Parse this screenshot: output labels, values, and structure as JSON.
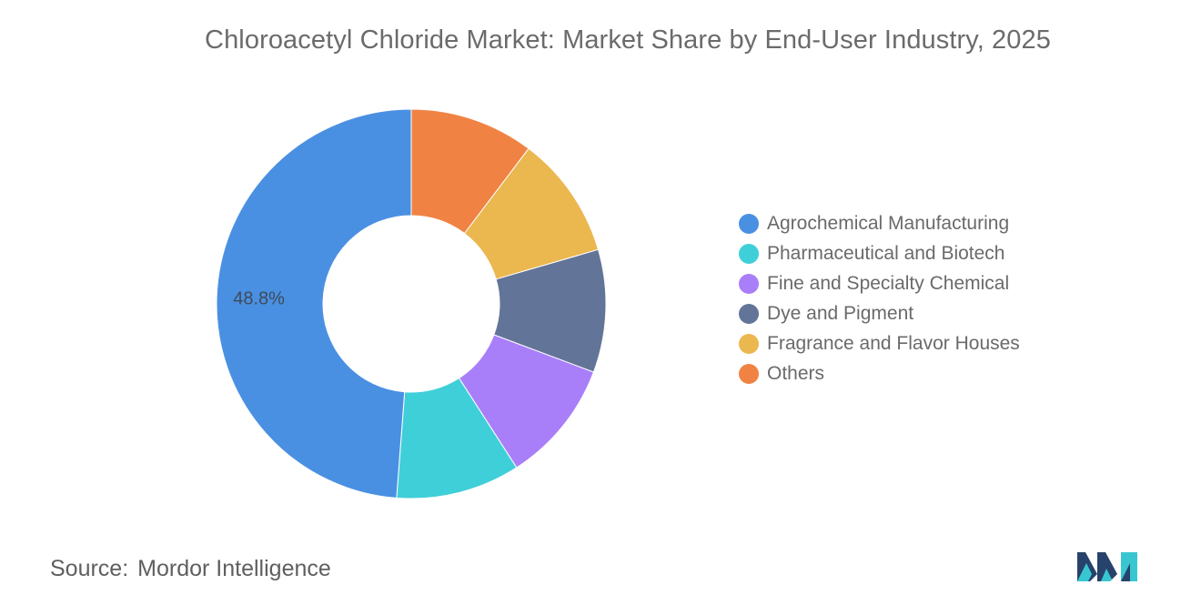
{
  "chart_data": {
    "type": "pie",
    "title": "Chloroacetyl Chloride Market: Market Share by End-User Industry, 2025",
    "categories": [
      "Agrochemical Manufacturing",
      "Pharmaceutical and Biotech",
      "Fine and Specialty Chemical",
      "Dye and Pigment",
      "Fragrance and Flavor Houses",
      "Others"
    ],
    "values": [
      48.8,
      10.3,
      10.2,
      10.2,
      10.2,
      10.3
    ],
    "colors": [
      "#4a90e2",
      "#3fcfd9",
      "#a97ff9",
      "#627598",
      "#ebb74f",
      "#f08344"
    ],
    "data_labels": [
      "48.8%",
      "",
      "",
      "",
      "",
      ""
    ],
    "legend_position": "right",
    "donut": true
  },
  "source": {
    "label": "Source:",
    "value": "Mordor Intelligence"
  },
  "logo": {
    "icon": "mordor-intelligence-logo",
    "colors": [
      "#27436b",
      "#38c7d1"
    ]
  }
}
